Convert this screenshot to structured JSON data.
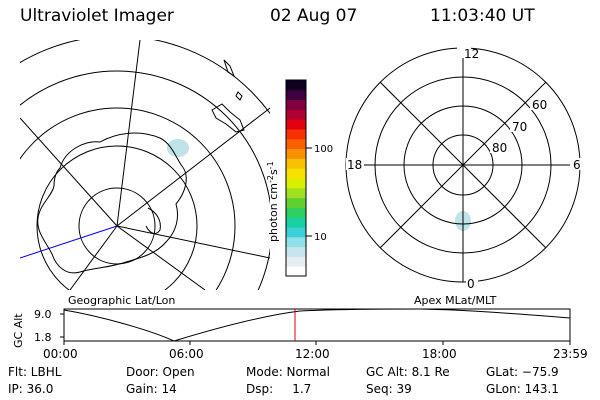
{
  "header": {
    "title": "Ultraviolet Imager",
    "date": "02 Aug 07",
    "time": "11:03:40 UT"
  },
  "left_panel": {
    "caption": "Geographic Lat/Lon"
  },
  "right_panel": {
    "caption": "Apex MLat/MLT",
    "mlt_labels": [
      "12",
      "18",
      "6",
      "0"
    ],
    "lat_labels": [
      "60",
      "70",
      "80"
    ]
  },
  "colorbar": {
    "unit_label": "photon cm",
    "unit_exp1": "-2",
    "unit_s": "s",
    "unit_exp2": "-1",
    "ticks": [
      "100",
      "10"
    ],
    "colors": [
      "#ffffff",
      "#e6eef3",
      "#c8e4ec",
      "#8fe0e8",
      "#3ccfd8",
      "#18d0a0",
      "#30d060",
      "#60d030",
      "#a0e020",
      "#d8f000",
      "#f8e000",
      "#f8c000",
      "#f89000",
      "#f86000",
      "#f83000",
      "#e00010",
      "#b00030",
      "#800040",
      "#400040",
      "#100020"
    ]
  },
  "altitude_panel": {
    "axis_label": "GC Alt",
    "y_max": "9.0",
    "y_min": "1.8",
    "time_ticks": [
      "00:00",
      "06:00",
      "12:00",
      "18:00",
      "23:59"
    ]
  },
  "info": {
    "flt": "Flt: LBHL",
    "door": "Door: Open",
    "mode": "Mode: Normal",
    "gcalt": "GC Alt: 8.1 Re",
    "glat": "GLat: −75.9",
    "ip": "IP: 36.0",
    "gain": "Gain: 14",
    "dsp": "Dsp:     1.7",
    "seq": "Seq: 39",
    "glon": "GLon: 143.1"
  },
  "colors": {
    "marker": "#e00000",
    "meridian": "#0000ff",
    "aurora_blob": "#bfe3e6"
  }
}
